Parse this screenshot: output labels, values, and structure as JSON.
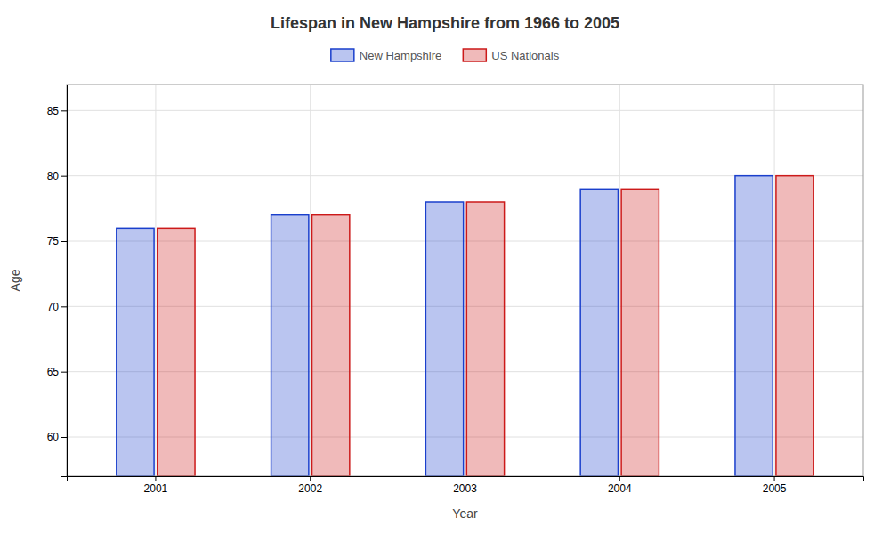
{
  "chart_data": {
    "type": "bar",
    "title": "Lifespan in New Hampshire from 1966 to 2005",
    "x_label": "Year",
    "y_label": "Age",
    "categories": [
      "2001",
      "2002",
      "2003",
      "2004",
      "2005"
    ],
    "series": [
      {
        "name": "New Hampshire",
        "color": "#1a3fcc",
        "values": [
          76,
          77,
          78,
          79,
          80
        ]
      },
      {
        "name": "US Nationals",
        "color": "#cc1a1a",
        "values": [
          76,
          77,
          78,
          79,
          80
        ]
      }
    ],
    "ylim": [
      57,
      87
    ],
    "yticks": [
      60,
      65,
      70,
      75,
      80,
      85
    ],
    "grid": true,
    "legend": "top"
  }
}
